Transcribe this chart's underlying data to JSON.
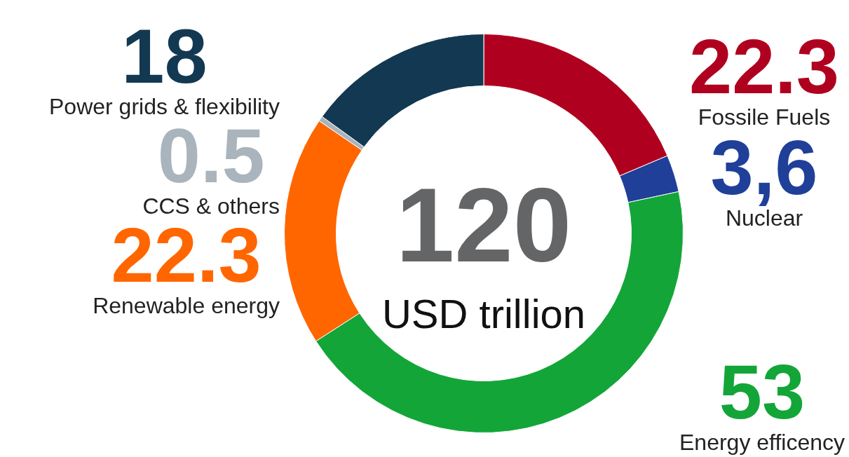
{
  "chart_data": {
    "type": "donut",
    "categories": [
      "Fossile Fuels",
      "Nuclear",
      "Energy efficency",
      "Renewable energy",
      "CCS & others",
      "Power grids & flexibility"
    ],
    "values": [
      22.3,
      3.6,
      53,
      22.3,
      0.5,
      18
    ],
    "value_labels": [
      "22.3",
      "3,6",
      "53",
      "22.3",
      "0.5",
      "18"
    ],
    "colors": [
      "#b0001f",
      "#1f3f99",
      "#13a538",
      "#ff6600",
      "#a9b4bc",
      "#133852"
    ],
    "annotations": [
      "120",
      "USD trillion"
    ],
    "legend": false
  }
}
